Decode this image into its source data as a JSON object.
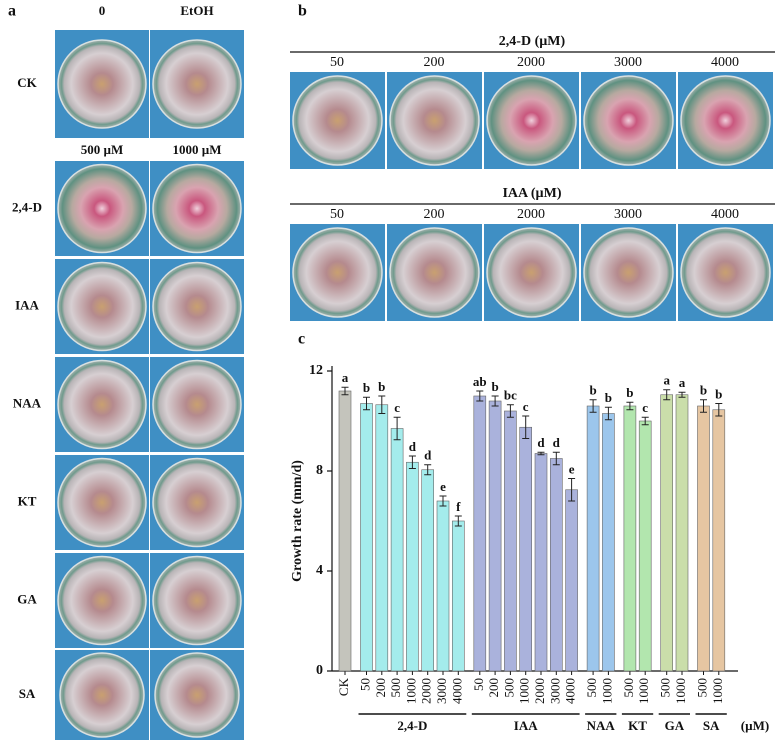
{
  "panel_a": {
    "label": "a",
    "headers_top": [
      "0",
      "EtOH"
    ],
    "headers_mid": [
      "500 µM",
      "1000 µM"
    ],
    "rows": [
      "CK",
      "2,4-D",
      "IAA",
      "NAA",
      "KT",
      "GA",
      "SA"
    ]
  },
  "panel_b": {
    "label": "b",
    "groups": [
      {
        "title": "2,4-D (µM)",
        "concentrations": [
          "50",
          "200",
          "2000",
          "3000",
          "4000"
        ]
      },
      {
        "title": "IAA (µM)",
        "concentrations": [
          "50",
          "200",
          "2000",
          "3000",
          "4000"
        ]
      }
    ]
  },
  "chart_data": {
    "type": "bar",
    "panel_label": "c",
    "ylabel": "Growth rate (mm/d)",
    "unit_label": "(µM)",
    "ylim": [
      0,
      12
    ],
    "yticks": [
      0,
      4,
      8,
      12
    ],
    "series": [
      {
        "color": "#c4c4bc",
        "categories": [
          "CK"
        ],
        "values": [
          11.2
        ],
        "errors": [
          0.15
        ],
        "letters": [
          "a"
        ]
      },
      {
        "name": "2,4-D",
        "color": "#a4ecec",
        "categories": [
          "50",
          "200",
          "500",
          "1000",
          "2000",
          "3000",
          "4000"
        ],
        "values": [
          10.7,
          10.65,
          9.7,
          8.35,
          8.05,
          6.8,
          6.0
        ],
        "errors": [
          0.25,
          0.35,
          0.45,
          0.25,
          0.2,
          0.2,
          0.2
        ],
        "letters": [
          "b",
          "b",
          "c",
          "d",
          "d",
          "e",
          "f"
        ]
      },
      {
        "name": "IAA",
        "color": "#aab2dc",
        "categories": [
          "50",
          "200",
          "500",
          "1000",
          "2000",
          "3000",
          "4000"
        ],
        "values": [
          11.0,
          10.8,
          10.4,
          9.75,
          8.7,
          8.5,
          7.25
        ],
        "errors": [
          0.2,
          0.2,
          0.25,
          0.45,
          0.05,
          0.25,
          0.45
        ],
        "letters": [
          "ab",
          "b",
          "bc",
          "c",
          "d",
          "d",
          "e"
        ]
      },
      {
        "name": "NAA",
        "color": "#9cc6ec",
        "categories": [
          "500",
          "1000"
        ],
        "values": [
          10.6,
          10.3
        ],
        "errors": [
          0.25,
          0.25
        ],
        "letters": [
          "b",
          "b"
        ]
      },
      {
        "name": "KT",
        "color": "#b2e6ae",
        "categories": [
          "500",
          "1000"
        ],
        "values": [
          10.6,
          10.0
        ],
        "errors": [
          0.15,
          0.15
        ],
        "letters": [
          "b",
          "c"
        ]
      },
      {
        "name": "GA",
        "color": "#cadeaa",
        "categories": [
          "500",
          "1000"
        ],
        "values": [
          11.05,
          11.05
        ],
        "errors": [
          0.2,
          0.1
        ],
        "letters": [
          "a",
          "a"
        ]
      },
      {
        "name": "SA",
        "color": "#e6c6a2",
        "categories": [
          "500",
          "1000"
        ],
        "values": [
          10.6,
          10.45
        ],
        "errors": [
          0.25,
          0.25
        ],
        "letters": [
          "b",
          "b"
        ]
      }
    ]
  }
}
